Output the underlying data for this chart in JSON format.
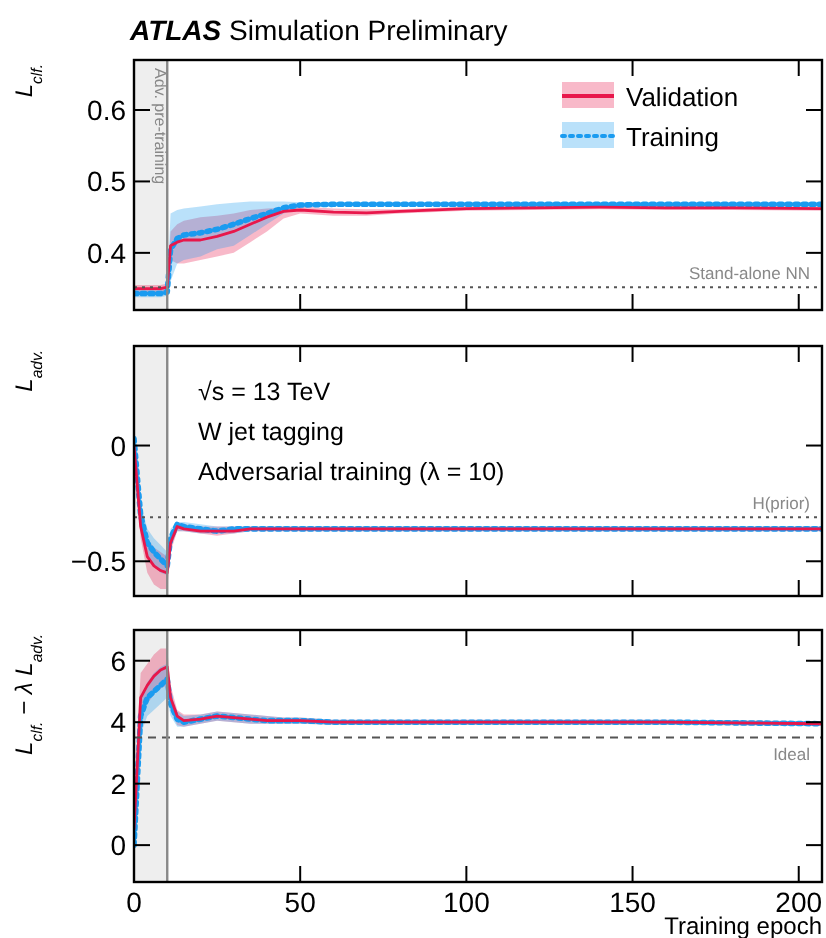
{
  "chart_data": [
    {
      "type": "line",
      "title": "ATLAS Simulation Preliminary",
      "ylabel": "L$_{clf.}$",
      "x": [
        0,
        2,
        4,
        6,
        8,
        10,
        11,
        13,
        15,
        20,
        25,
        30,
        35,
        40,
        45,
        50,
        60,
        70,
        80,
        100,
        120,
        140,
        160,
        180,
        207
      ],
      "xlim": [
        0,
        207
      ],
      "xticks": [
        0,
        50,
        100,
        150,
        200
      ],
      "ylim": [
        0.32,
        0.67
      ],
      "yticks": [
        0.4,
        0.5,
        0.6
      ],
      "tick_labels": "y",
      "legend": "top right",
      "series": [
        {
          "name": "Validation",
          "color": "#e8174b",
          "line_style": "solid",
          "values": [
            0.35,
            0.35,
            0.35,
            0.35,
            0.35,
            0.352,
            0.41,
            0.415,
            0.418,
            0.418,
            0.423,
            0.43,
            0.44,
            0.45,
            0.458,
            0.46,
            0.457,
            0.456,
            0.458,
            0.462,
            0.463,
            0.464,
            0.463,
            0.463,
            0.462
          ],
          "lower": [
            0.345,
            0.345,
            0.345,
            0.345,
            0.345,
            0.347,
            0.39,
            0.385,
            0.385,
            0.39,
            0.395,
            0.4,
            0.415,
            0.43,
            0.448,
            0.455,
            0.452,
            0.452,
            0.455,
            0.459,
            0.46,
            0.461,
            0.46,
            0.46,
            0.459
          ],
          "upper": [
            0.355,
            0.355,
            0.355,
            0.355,
            0.355,
            0.357,
            0.43,
            0.44,
            0.445,
            0.45,
            0.452,
            0.455,
            0.46,
            0.462,
            0.463,
            0.465,
            0.462,
            0.461,
            0.461,
            0.465,
            0.466,
            0.467,
            0.466,
            0.466,
            0.465
          ]
        },
        {
          "name": "Training",
          "color": "#1a9bf0",
          "line_style": "dotted",
          "values": [
            0.343,
            0.343,
            0.343,
            0.343,
            0.343,
            0.345,
            0.405,
            0.42,
            0.425,
            0.428,
            0.433,
            0.44,
            0.448,
            0.455,
            0.463,
            0.467,
            0.468,
            0.468,
            0.468,
            0.468,
            0.468,
            0.468,
            0.468,
            0.468,
            0.468
          ],
          "lower": [
            0.338,
            0.338,
            0.338,
            0.338,
            0.338,
            0.34,
            0.36,
            0.385,
            0.39,
            0.395,
            0.405,
            0.41,
            0.425,
            0.44,
            0.455,
            0.463,
            0.465,
            0.465,
            0.465,
            0.465,
            0.465,
            0.465,
            0.465,
            0.465,
            0.465
          ],
          "upper": [
            0.348,
            0.348,
            0.348,
            0.348,
            0.348,
            0.35,
            0.455,
            0.46,
            0.462,
            0.465,
            0.468,
            0.47,
            0.472,
            0.472,
            0.472,
            0.471,
            0.471,
            0.471,
            0.471,
            0.471,
            0.471,
            0.471,
            0.471,
            0.471,
            0.471
          ]
        }
      ],
      "bands": [
        {
          "axis": "x",
          "from": 0,
          "to": 10,
          "label": "Adv. pre-training",
          "color": "#eeeeee"
        }
      ],
      "ref_lines": [
        {
          "axis": "y",
          "value": 0.352,
          "label": "Stand-alone NN",
          "color": "#555555",
          "line_style": "dotted"
        },
        {
          "axis": "x",
          "value": 10,
          "color": "#888888",
          "line_style": "solid"
        }
      ]
    },
    {
      "type": "line",
      "ylabel": "L$_{adv.}$",
      "x": [
        0,
        2,
        4,
        6,
        8,
        10,
        11,
        13,
        15,
        20,
        25,
        30,
        35,
        40,
        45,
        50,
        60,
        70,
        80,
        100,
        120,
        140,
        160,
        180,
        207
      ],
      "xlim": [
        0,
        207
      ],
      "xticks": [
        0,
        50,
        100,
        150,
        200
      ],
      "ylim": [
        -0.65,
        0.43
      ],
      "yticks": [
        -0.5,
        0
      ],
      "tick_labels": "y",
      "annotations": [
        "√s = 13 TeV",
        "W jet tagging",
        "Adversarial training (λ = 10)"
      ],
      "series": [
        {
          "color": "#e8174b",
          "line_style": "solid",
          "values": [
            0,
            -0.35,
            -0.48,
            -0.52,
            -0.54,
            -0.55,
            -0.42,
            -0.35,
            -0.36,
            -0.37,
            -0.37,
            -0.37,
            -0.36,
            -0.36,
            -0.36,
            -0.36,
            -0.36,
            -0.36,
            -0.36,
            -0.36,
            -0.36,
            -0.36,
            -0.36,
            -0.36,
            -0.36
          ],
          "lower": [
            -0.01,
            -0.4,
            -0.55,
            -0.6,
            -0.62,
            -0.62,
            -0.46,
            -0.37,
            -0.37,
            -0.38,
            -0.39,
            -0.38,
            -0.37,
            -0.37,
            -0.37,
            -0.37,
            -0.37,
            -0.37,
            -0.37,
            -0.37,
            -0.37,
            -0.37,
            -0.37,
            -0.37,
            -0.37
          ],
          "upper": [
            0.02,
            -0.3,
            -0.4,
            -0.44,
            -0.46,
            -0.48,
            -0.38,
            -0.33,
            -0.34,
            -0.35,
            -0.35,
            -0.35,
            -0.35,
            -0.35,
            -0.35,
            -0.35,
            -0.35,
            -0.35,
            -0.35,
            -0.35,
            -0.35,
            -0.35,
            -0.35,
            -0.35,
            -0.35
          ]
        },
        {
          "color": "#1a9bf0",
          "line_style": "dotted",
          "values": [
            0.03,
            -0.3,
            -0.42,
            -0.46,
            -0.49,
            -0.52,
            -0.4,
            -0.34,
            -0.35,
            -0.36,
            -0.37,
            -0.36,
            -0.36,
            -0.36,
            -0.36,
            -0.36,
            -0.36,
            -0.36,
            -0.36,
            -0.36,
            -0.36,
            -0.36,
            -0.36,
            -0.36,
            -0.36
          ],
          "lower": [
            0,
            -0.35,
            -0.48,
            -0.52,
            -0.55,
            -0.56,
            -0.44,
            -0.37,
            -0.37,
            -0.38,
            -0.38,
            -0.38,
            -0.37,
            -0.37,
            -0.37,
            -0.37,
            -0.37,
            -0.37,
            -0.37,
            -0.37,
            -0.37,
            -0.37,
            -0.37,
            -0.37,
            -0.37
          ],
          "upper": [
            0.04,
            -0.25,
            -0.36,
            -0.4,
            -0.43,
            -0.46,
            -0.36,
            -0.33,
            -0.33,
            -0.34,
            -0.35,
            -0.35,
            -0.35,
            -0.35,
            -0.35,
            -0.35,
            -0.35,
            -0.35,
            -0.35,
            -0.35,
            -0.35,
            -0.35,
            -0.35,
            -0.35,
            -0.35
          ]
        }
      ],
      "bands": [
        {
          "axis": "x",
          "from": 0,
          "to": 10,
          "color": "#eeeeee"
        }
      ],
      "ref_lines": [
        {
          "axis": "y",
          "value": -0.31,
          "label": "H(prior)",
          "color": "#555555",
          "line_style": "dotted"
        },
        {
          "axis": "x",
          "value": 10,
          "color": "#888888",
          "line_style": "solid"
        }
      ]
    },
    {
      "type": "line",
      "ylabel": "L$_{clf.}$ − λ L$_{adv.}$",
      "xlabel": "Training epoch",
      "x": [
        0,
        2,
        4,
        6,
        8,
        10,
        11,
        13,
        15,
        20,
        25,
        30,
        35,
        40,
        45,
        50,
        60,
        70,
        80,
        100,
        120,
        140,
        160,
        180,
        207
      ],
      "xlim": [
        0,
        207
      ],
      "xticks": [
        0,
        50,
        100,
        150,
        200
      ],
      "ylim": [
        -1.2,
        7
      ],
      "yticks": [
        0,
        2,
        4,
        6
      ],
      "series": [
        {
          "color": "#e8174b",
          "line_style": "solid",
          "values": [
            0.5,
            4.8,
            5.2,
            5.5,
            5.7,
            5.8,
            4.8,
            4.2,
            4.05,
            4.1,
            4.2,
            4.15,
            4.1,
            4.05,
            4.05,
            4.05,
            4.0,
            4.0,
            4.0,
            4.0,
            4.0,
            4.0,
            4.0,
            3.98,
            3.95
          ],
          "lower": [
            0,
            4.2,
            4.6,
            4.9,
            5.1,
            5.2,
            4.4,
            3.9,
            3.85,
            3.95,
            4.05,
            4.0,
            3.95,
            3.95,
            3.95,
            3.95,
            3.92,
            3.92,
            3.92,
            3.92,
            3.92,
            3.92,
            3.92,
            3.9,
            3.88
          ],
          "upper": [
            1.5,
            5.6,
            5.9,
            6.2,
            6.4,
            6.4,
            5.2,
            4.4,
            4.25,
            4.25,
            4.35,
            4.3,
            4.25,
            4.2,
            4.15,
            4.15,
            4.08,
            4.08,
            4.08,
            4.08,
            4.08,
            4.08,
            4.08,
            4.06,
            4.03
          ]
        },
        {
          "color": "#1a9bf0",
          "line_style": "dotted",
          "values": [
            0,
            4.2,
            4.8,
            5.0,
            5.2,
            5.4,
            4.6,
            4.1,
            4.0,
            4.1,
            4.2,
            4.15,
            4.1,
            4.05,
            4.05,
            4.05,
            4.0,
            4.0,
            4.0,
            4.0,
            4.0,
            4.0,
            4.0,
            3.98,
            3.95
          ],
          "lower": [
            0,
            3.6,
            4.2,
            4.4,
            4.6,
            4.8,
            4.2,
            3.85,
            3.85,
            3.95,
            4.05,
            4.0,
            3.95,
            3.95,
            3.95,
            3.95,
            3.92,
            3.92,
            3.92,
            3.92,
            3.92,
            3.92,
            3.92,
            3.9,
            3.88
          ],
          "upper": [
            0.5,
            4.8,
            5.3,
            5.6,
            5.8,
            5.9,
            5.0,
            4.35,
            4.2,
            4.25,
            4.35,
            4.3,
            4.25,
            4.2,
            4.15,
            4.15,
            4.08,
            4.08,
            4.08,
            4.08,
            4.08,
            4.08,
            4.08,
            4.06,
            4.03
          ]
        }
      ],
      "bands": [
        {
          "axis": "x",
          "from": 0,
          "to": 10,
          "color": "#eeeeee"
        }
      ],
      "ref_lines": [
        {
          "axis": "y",
          "value": 3.5,
          "label": "Ideal",
          "color": "#555555",
          "line_style": "dashed"
        },
        {
          "axis": "x",
          "value": 10,
          "color": "#888888",
          "line_style": "solid"
        }
      ]
    }
  ]
}
